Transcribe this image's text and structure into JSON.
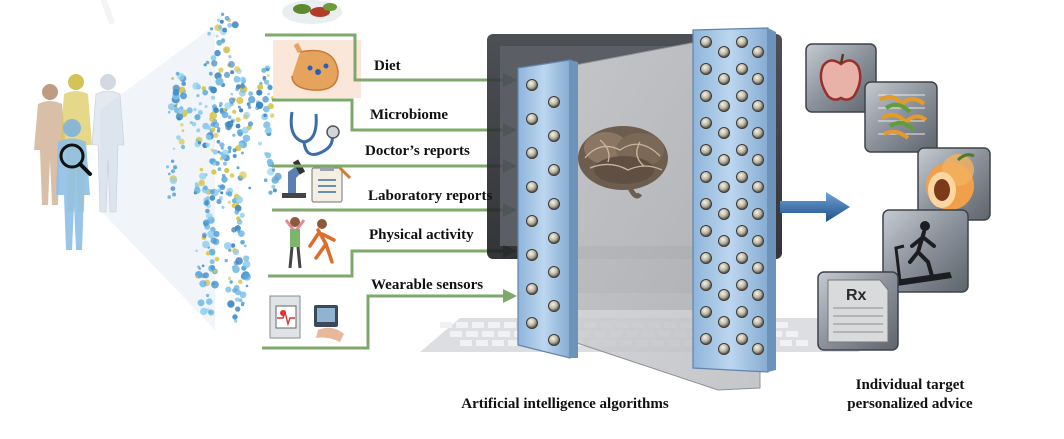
{
  "inputs": {
    "diet": "Diet",
    "microbiome": "Microbiome",
    "doctor": "Doctor’s reports",
    "laboratory": "Laboratory reports",
    "activity": "Physical activity",
    "wearable": "Wearable sensors"
  },
  "ai_caption": "Artificial intelligence algorithms",
  "advice_caption": {
    "line1": "Individual target",
    "line2": "personalized advice"
  },
  "rx_text": "Rx",
  "icons": [
    "people-group-icon",
    "magnifier-icon",
    "human-body-icon",
    "food-plate-icon",
    "stomach-icon",
    "stethoscope-icon",
    "microscope-icon",
    "clipboard-icon",
    "exercise-people-icon",
    "wearable-monitor-icon",
    "computer-monitor-icon",
    "keyboard-icon",
    "brain-icon",
    "apple-icon",
    "salad-icon",
    "peach-icon",
    "treadmill-icon",
    "prescription-icon"
  ],
  "colors": {
    "arrow_green": "#7fa86b",
    "panel_blue": "#a7c6e3",
    "body_blue": "#5aa9dc",
    "body_yellow": "#d8c64a",
    "tile_grey": "#7d838c",
    "output_arrow": "#2f6aa0"
  }
}
